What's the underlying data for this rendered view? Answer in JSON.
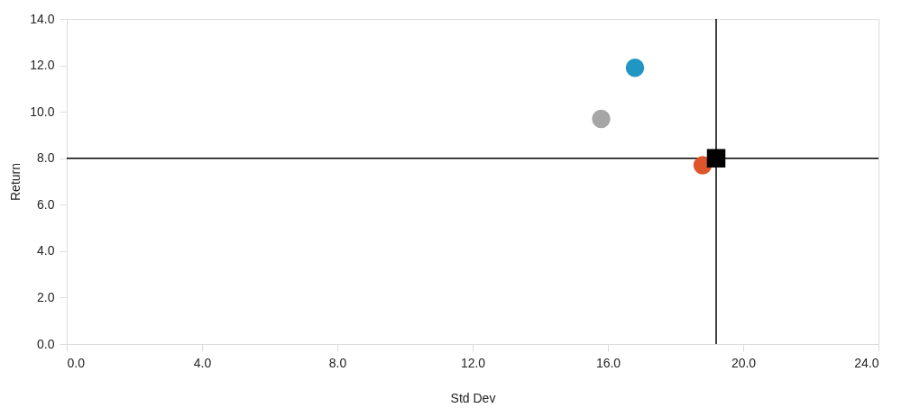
{
  "chart_data": {
    "type": "scatter",
    "xlabel": "Std Dev",
    "ylabel": "Return",
    "xlim": [
      0,
      24
    ],
    "ylim": [
      0,
      14
    ],
    "xticks": [
      {
        "value": 0,
        "label": "0.0"
      },
      {
        "value": 4,
        "label": "4.0"
      },
      {
        "value": 8,
        "label": "8.0"
      },
      {
        "value": 12,
        "label": "12.0"
      },
      {
        "value": 16,
        "label": "16.0"
      },
      {
        "value": 20,
        "label": "20.0"
      },
      {
        "value": 24,
        "label": "24.0"
      }
    ],
    "yticks": [
      {
        "value": 0,
        "label": "0.0"
      },
      {
        "value": 2,
        "label": "2.0"
      },
      {
        "value": 4,
        "label": "4.0"
      },
      {
        "value": 6,
        "label": "6.0"
      },
      {
        "value": 8,
        "label": "8.0"
      },
      {
        "value": 10,
        "label": "10.0"
      },
      {
        "value": 12,
        "label": "12.0"
      },
      {
        "value": 14,
        "label": "14.0"
      }
    ],
    "grid": false,
    "legend": false,
    "series": [
      {
        "x": [
          16.8,
          15.8,
          18.8
        ],
        "values": [
          11.9,
          9.7,
          7.7
        ],
        "colors": [
          "#2196c4",
          "#a6a6a6",
          "#dd552b"
        ],
        "marker": "circle"
      },
      {
        "x": [
          19.2
        ],
        "values": [
          8.0
        ],
        "color": "#000000",
        "marker": "square"
      }
    ],
    "ref_lines": [
      {
        "axis": "x",
        "value": 19.2,
        "color": "#000000"
      },
      {
        "axis": "y",
        "value": 8.0,
        "color": "#000000"
      }
    ]
  }
}
